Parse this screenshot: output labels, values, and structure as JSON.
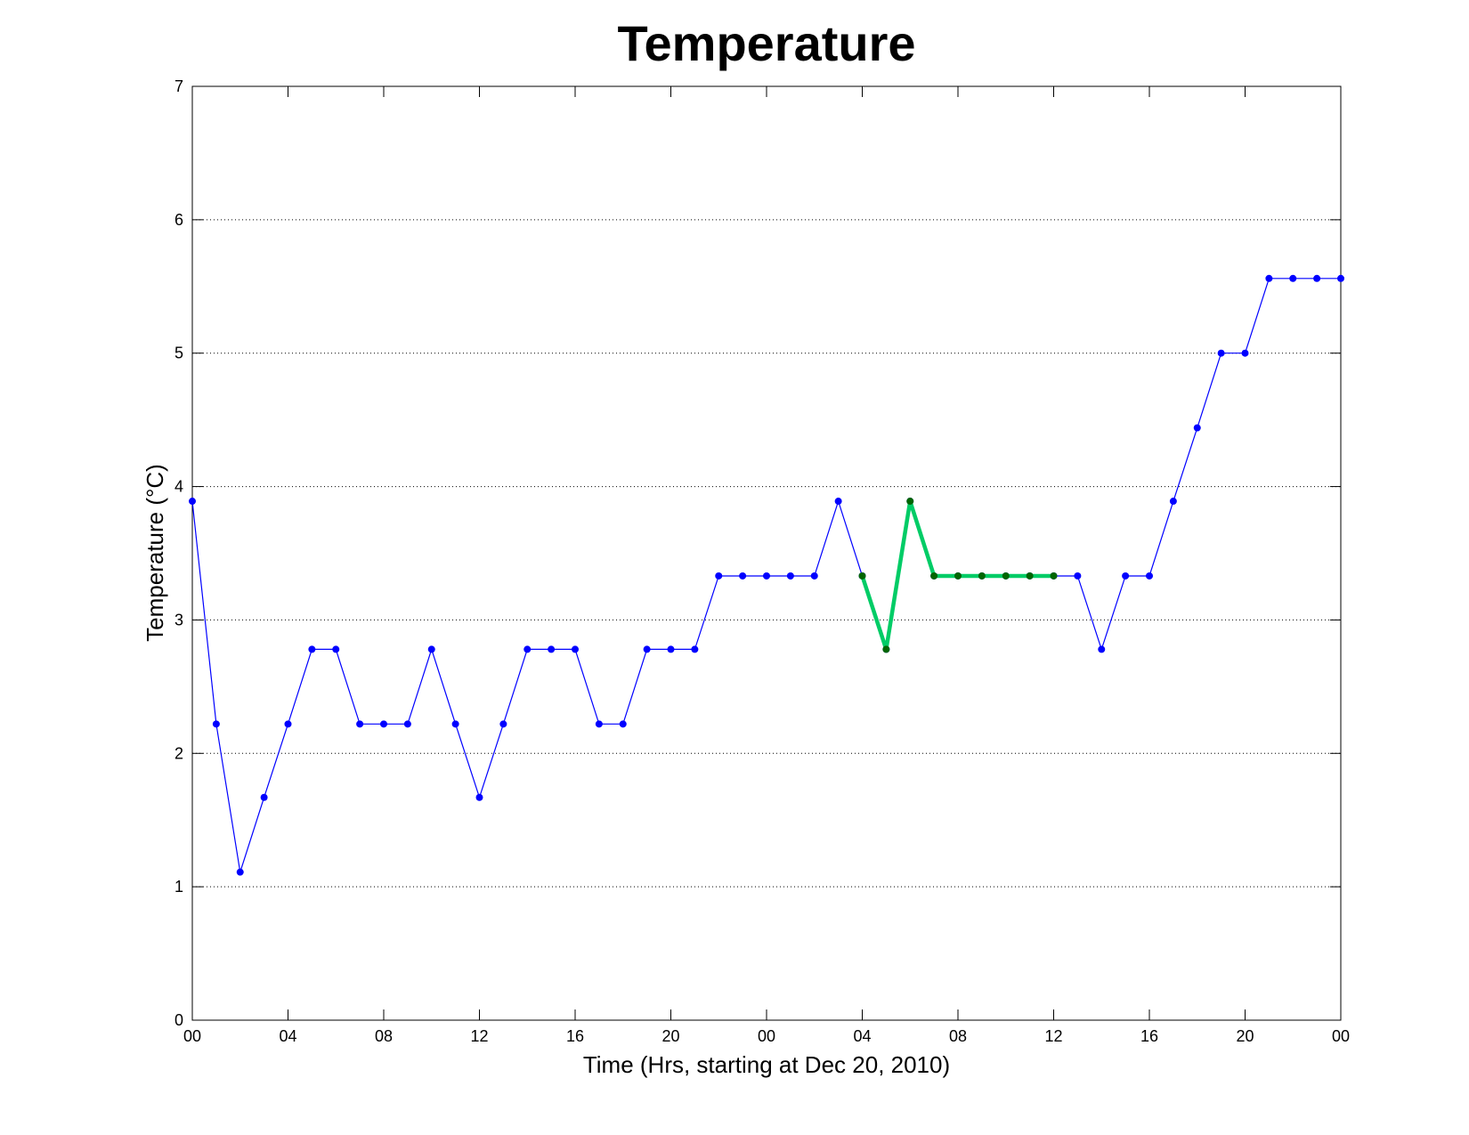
{
  "chart_data": {
    "type": "line",
    "title": "Temperature",
    "xlabel": "Time (Hrs, starting at Dec 20, 2010)",
    "ylabel": "Temperature (°C)",
    "xlim": [
      0,
      48
    ],
    "ylim": [
      0,
      7
    ],
    "x_ticks": [
      0,
      4,
      8,
      12,
      16,
      20,
      24,
      28,
      32,
      36,
      40,
      44,
      48
    ],
    "x_tick_labels": [
      "00",
      "04",
      "08",
      "12",
      "16",
      "20",
      "00",
      "04",
      "08",
      "12",
      "16",
      "20",
      "00"
    ],
    "y_ticks": [
      0,
      1,
      2,
      3,
      4,
      5,
      6,
      7
    ],
    "y_tick_labels": [
      "0",
      "1",
      "2",
      "3",
      "4",
      "5",
      "6",
      "7"
    ],
    "grid": "horizontal dotted",
    "series": [
      {
        "color": "#0000ff",
        "marker": "dot",
        "line_width": "thin",
        "x": [
          0,
          1,
          2,
          3,
          4,
          5,
          6,
          7,
          8,
          9,
          10,
          11,
          12,
          13,
          14,
          15,
          16,
          17,
          18,
          19,
          20,
          21,
          22,
          23,
          24,
          25,
          26,
          27,
          28,
          29,
          30,
          31,
          32,
          33,
          34,
          35,
          36,
          37,
          38,
          39,
          40,
          41,
          42,
          43,
          44,
          45,
          46,
          47,
          48
        ],
        "values": [
          3.89,
          2.22,
          1.11,
          1.67,
          2.22,
          2.78,
          2.78,
          2.22,
          2.22,
          2.22,
          2.78,
          2.22,
          1.67,
          2.22,
          2.78,
          2.78,
          2.78,
          2.22,
          2.22,
          2.78,
          2.78,
          2.78,
          3.33,
          3.33,
          3.33,
          3.33,
          3.33,
          3.89,
          3.33,
          2.78,
          3.89,
          3.33,
          3.33,
          3.33,
          3.33,
          3.33,
          3.33,
          3.33,
          2.78,
          3.33,
          3.33,
          3.89,
          4.44,
          5.0,
          5.0,
          5.56,
          5.56,
          5.56,
          5.56
        ]
      },
      {
        "color": "#00cc66",
        "marker_color": "#006600",
        "marker": "dot",
        "line_width": "thick",
        "x": [
          28,
          29,
          30,
          31,
          32,
          33,
          34,
          35,
          36
        ],
        "values": [
          3.33,
          2.78,
          3.89,
          3.33,
          3.33,
          3.33,
          3.33,
          3.33,
          3.33
        ]
      }
    ]
  }
}
